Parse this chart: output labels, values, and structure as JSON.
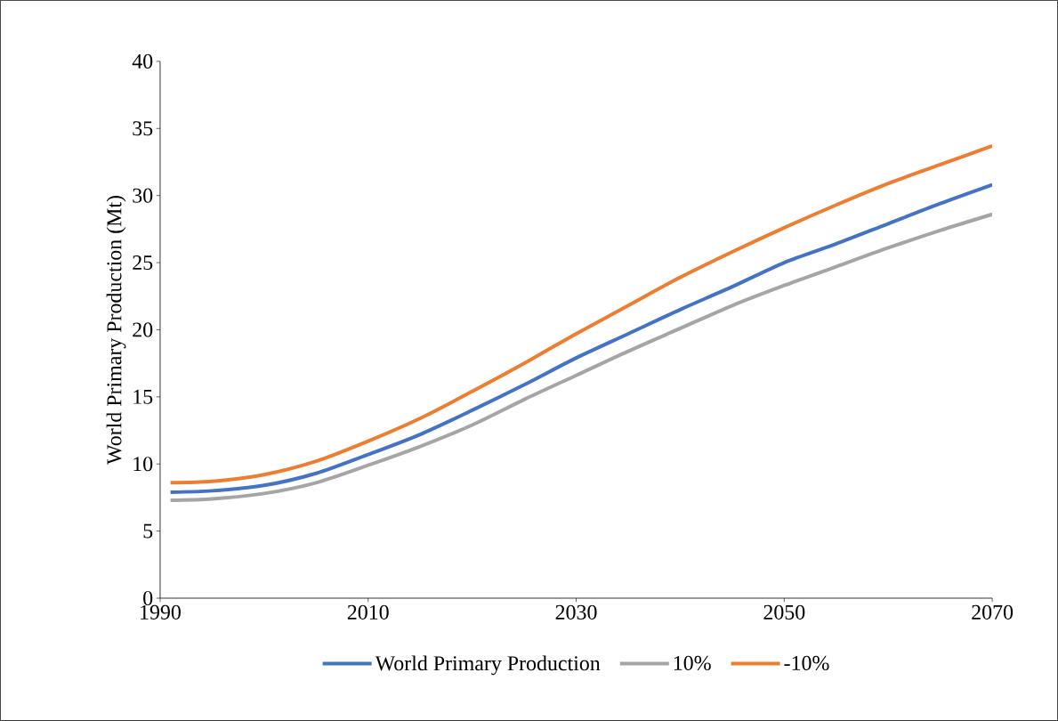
{
  "chart_data": {
    "type": "line",
    "ylabel": "World Primary Production (Mt)",
    "x": [
      1991,
      1995,
      2000,
      2005,
      2010,
      2015,
      2020,
      2025,
      2030,
      2035,
      2040,
      2045,
      2050,
      2055,
      2060,
      2065,
      2070
    ],
    "series": [
      {
        "name": "World Primary Production",
        "color": "#4472c4",
        "values": [
          7.9,
          8.0,
          8.4,
          9.3,
          10.7,
          12.2,
          14.0,
          15.9,
          17.9,
          19.7,
          21.5,
          23.2,
          25.0,
          26.4,
          27.9,
          29.4,
          30.8
        ]
      },
      {
        "name": "10%",
        "color": "#a5a5a5",
        "values": [
          7.3,
          7.4,
          7.8,
          8.6,
          9.9,
          11.3,
          12.9,
          14.8,
          16.6,
          18.4,
          20.1,
          21.8,
          23.3,
          24.7,
          26.1,
          27.4,
          28.6
        ]
      },
      {
        "name": "-10%",
        "color": "#ed7d31",
        "values": [
          8.6,
          8.7,
          9.2,
          10.2,
          11.7,
          13.4,
          15.4,
          17.5,
          19.7,
          21.8,
          23.9,
          25.8,
          27.6,
          29.3,
          30.9,
          32.3,
          33.7
        ]
      }
    ],
    "xlim": [
      1990,
      2070
    ],
    "xticks": [
      1990,
      2010,
      2030,
      2050,
      2070
    ],
    "ylim": [
      0,
      40
    ],
    "yticks": [
      0,
      5,
      10,
      15,
      20,
      25,
      30,
      35,
      40
    ],
    "grid": false,
    "legend": "bottom",
    "marker": "none",
    "line_style": "solid"
  }
}
